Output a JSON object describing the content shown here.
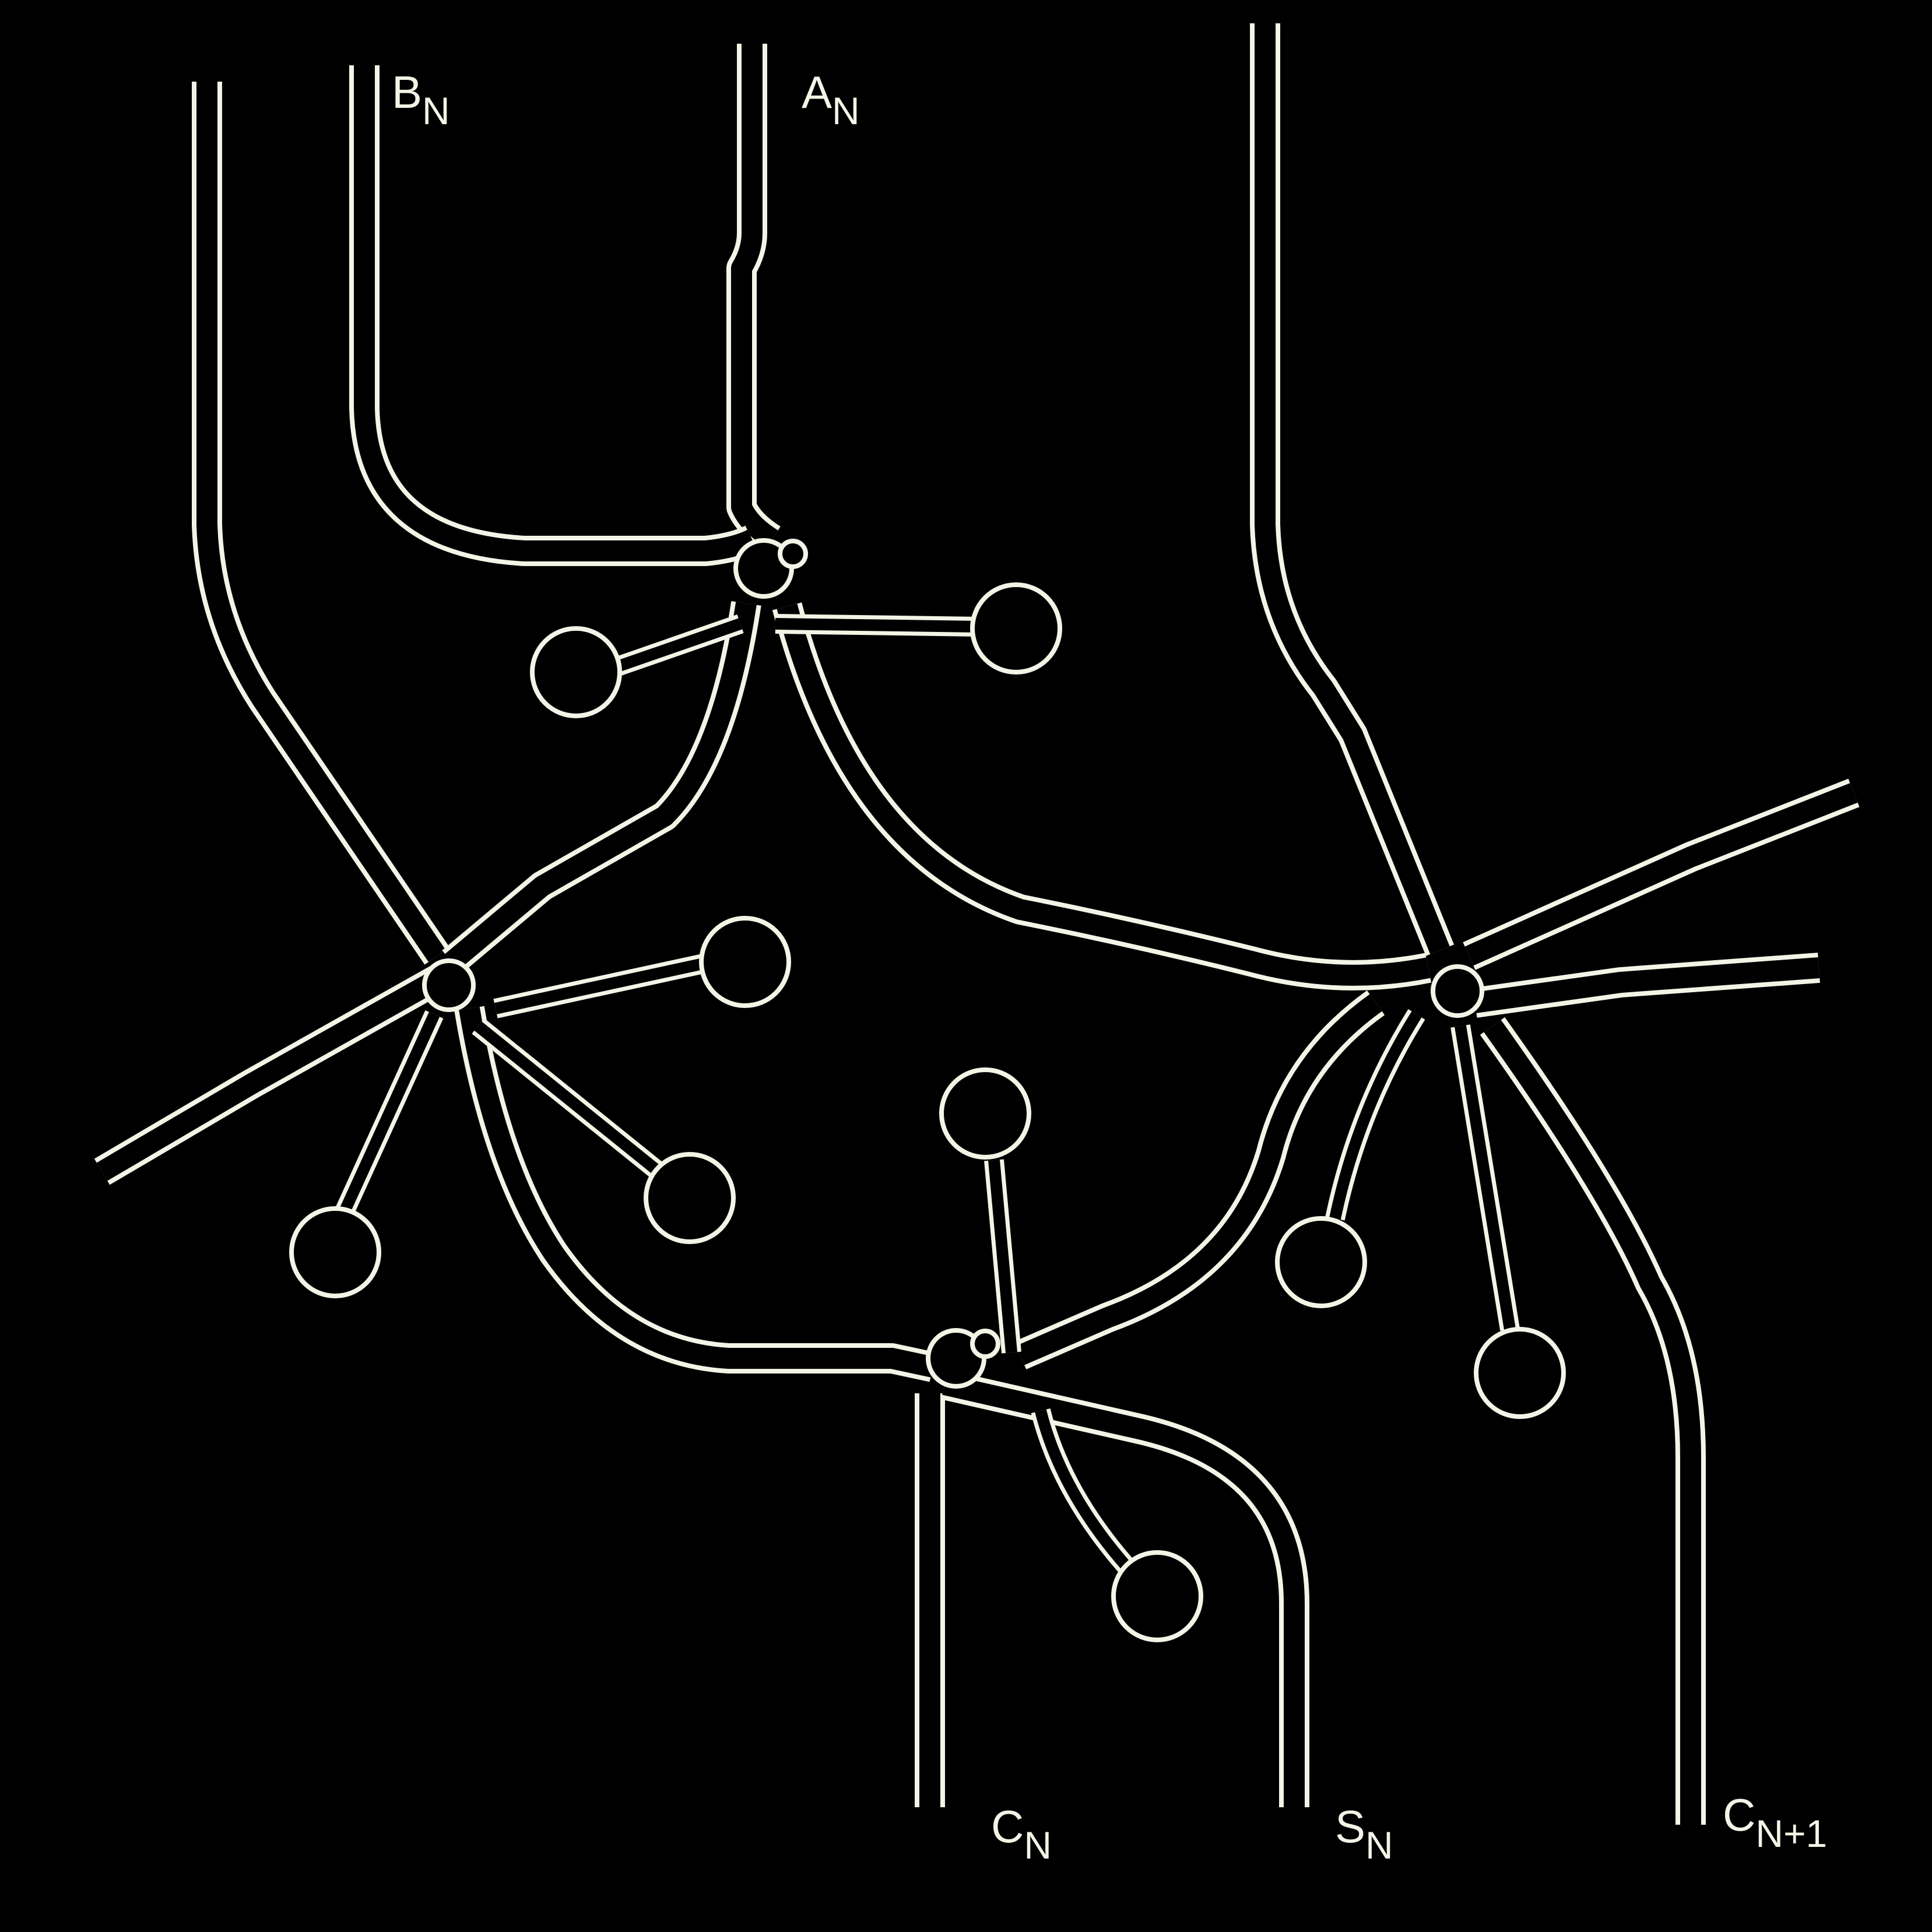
{
  "colors": {
    "background": "#000000",
    "trace": "#f2f5e6"
  },
  "labels": {
    "b_in": {
      "main": "B",
      "sub": "N"
    },
    "a_in": {
      "main": "A",
      "sub": "N"
    },
    "c_in": {
      "main": "C",
      "sub": "N"
    },
    "sum_out": {
      "main": "S",
      "sub": "N"
    },
    "c_out": {
      "main": "C",
      "sub": "N+1"
    }
  }
}
